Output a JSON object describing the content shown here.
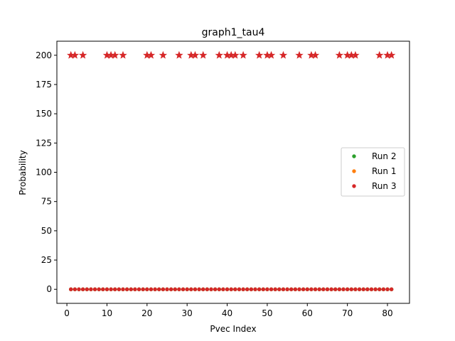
{
  "chart_data": {
    "type": "scatter",
    "title": "graph1_tau4",
    "xlabel": "Pvec Index",
    "ylabel": "Probability",
    "xlim": [
      -2.5,
      85.5
    ],
    "ylim": [
      -12.0,
      212.0
    ],
    "xticks": [
      0,
      10,
      20,
      30,
      40,
      50,
      60,
      70,
      80
    ],
    "yticks": [
      0,
      25,
      50,
      75,
      100,
      125,
      150,
      175,
      200
    ],
    "grid": false,
    "legend_position": "center-right",
    "legend_order": [
      "Run 2",
      "Run 1",
      "Run 3"
    ],
    "series": [
      {
        "name": "Run 1",
        "color": "#ff7f0e",
        "marker": "dot",
        "x": [
          1,
          2,
          3,
          4,
          5,
          6,
          7,
          8,
          9,
          10,
          11,
          12,
          13,
          14,
          15,
          16,
          17,
          18,
          19,
          20,
          21,
          22,
          23,
          24,
          25,
          26,
          27,
          28,
          29,
          30,
          31,
          32,
          33,
          34,
          35,
          36,
          37,
          38,
          39,
          40,
          41,
          42,
          43,
          44,
          45,
          46,
          47,
          48,
          49,
          50,
          51,
          52,
          53,
          54,
          55,
          56,
          57,
          58,
          59,
          60,
          61,
          62,
          63,
          64,
          65,
          66,
          67,
          68,
          69,
          70,
          71,
          72,
          73,
          74,
          75,
          76,
          77,
          78,
          79,
          80,
          81
        ],
        "y": [
          0,
          0,
          0,
          0,
          0,
          0,
          0,
          0,
          0,
          0,
          0,
          0,
          0,
          0,
          0,
          0,
          0,
          0,
          0,
          0,
          0,
          0,
          0,
          0,
          0,
          0,
          0,
          0,
          0,
          0,
          0,
          0,
          0,
          0,
          0,
          0,
          0,
          0,
          0,
          0,
          0,
          0,
          0,
          0,
          0,
          0,
          0,
          0,
          0,
          0,
          0,
          0,
          0,
          0,
          0,
          0,
          0,
          0,
          0,
          0,
          0,
          0,
          0,
          0,
          0,
          0,
          0,
          0,
          0,
          0,
          0,
          0,
          0,
          0,
          0,
          0,
          0,
          0,
          0,
          0,
          0
        ]
      },
      {
        "name": "Run 2",
        "color": "#2ca02c",
        "marker": "dot",
        "x": [
          1,
          2,
          3,
          4,
          5,
          6,
          7,
          8,
          9,
          10,
          11,
          12,
          13,
          14,
          15,
          16,
          17,
          18,
          19,
          20,
          21,
          22,
          23,
          24,
          25,
          26,
          27,
          28,
          29,
          30,
          31,
          32,
          33,
          34,
          35,
          36,
          37,
          38,
          39,
          40,
          41,
          42,
          43,
          44,
          45,
          46,
          47,
          48,
          49,
          50,
          51,
          52,
          53,
          54,
          55,
          56,
          57,
          58,
          59,
          60,
          61,
          62,
          63,
          64,
          65,
          66,
          67,
          68,
          69,
          70,
          71,
          72,
          73,
          74,
          75,
          76,
          77,
          78,
          79,
          80,
          81
        ],
        "y": [
          0,
          0,
          0,
          0,
          0,
          0,
          0,
          0,
          0,
          0,
          0,
          0,
          0,
          0,
          0,
          0,
          0,
          0,
          0,
          0,
          0,
          0,
          0,
          0,
          0,
          0,
          0,
          0,
          0,
          0,
          0,
          0,
          0,
          0,
          0,
          0,
          0,
          0,
          0,
          0,
          0,
          0,
          0,
          0,
          0,
          0,
          0,
          0,
          0,
          0,
          0,
          0,
          0,
          0,
          0,
          0,
          0,
          0,
          0,
          0,
          0,
          0,
          0,
          0,
          0,
          0,
          0,
          0,
          0,
          0,
          0,
          0,
          0,
          0,
          0,
          0,
          0,
          0,
          0,
          0,
          0
        ]
      },
      {
        "name": "Run 3",
        "color": "#d62728",
        "marker": "dot",
        "x": [
          1,
          2,
          3,
          4,
          5,
          6,
          7,
          8,
          9,
          10,
          11,
          12,
          13,
          14,
          15,
          16,
          17,
          18,
          19,
          20,
          21,
          22,
          23,
          24,
          25,
          26,
          27,
          28,
          29,
          30,
          31,
          32,
          33,
          34,
          35,
          36,
          37,
          38,
          39,
          40,
          41,
          42,
          43,
          44,
          45,
          46,
          47,
          48,
          49,
          50,
          51,
          52,
          53,
          54,
          55,
          56,
          57,
          58,
          59,
          60,
          61,
          62,
          63,
          64,
          65,
          66,
          67,
          68,
          69,
          70,
          71,
          72,
          73,
          74,
          75,
          76,
          77,
          78,
          79,
          80,
          81
        ],
        "y": [
          0,
          0,
          0,
          0,
          0,
          0,
          0,
          0,
          0,
          0,
          0,
          0,
          0,
          0,
          0,
          0,
          0,
          0,
          0,
          0,
          0,
          0,
          0,
          0,
          0,
          0,
          0,
          0,
          0,
          0,
          0,
          0,
          0,
          0,
          0,
          0,
          0,
          0,
          0,
          0,
          0,
          0,
          0,
          0,
          0,
          0,
          0,
          0,
          0,
          0,
          0,
          0,
          0,
          0,
          0,
          0,
          0,
          0,
          0,
          0,
          0,
          0,
          0,
          0,
          0,
          0,
          0,
          0,
          0,
          0,
          0,
          0,
          0,
          0,
          0,
          0,
          0,
          0,
          0,
          0,
          0
        ]
      },
      {
        "name": "",
        "color": "#d62728",
        "marker": "star",
        "x": [
          1,
          2,
          4,
          10,
          11,
          12,
          14,
          20,
          21,
          24,
          28,
          31,
          32,
          34,
          38,
          40,
          41,
          42,
          44,
          48,
          50,
          51,
          54,
          58,
          61,
          62,
          68,
          70,
          71,
          72,
          78,
          80,
          81
        ],
        "y": [
          200,
          200,
          200,
          200,
          200,
          200,
          200,
          200,
          200,
          200,
          200,
          200,
          200,
          200,
          200,
          200,
          200,
          200,
          200,
          200,
          200,
          200,
          200,
          200,
          200,
          200,
          200,
          200,
          200,
          200,
          200,
          200,
          200
        ]
      }
    ]
  }
}
